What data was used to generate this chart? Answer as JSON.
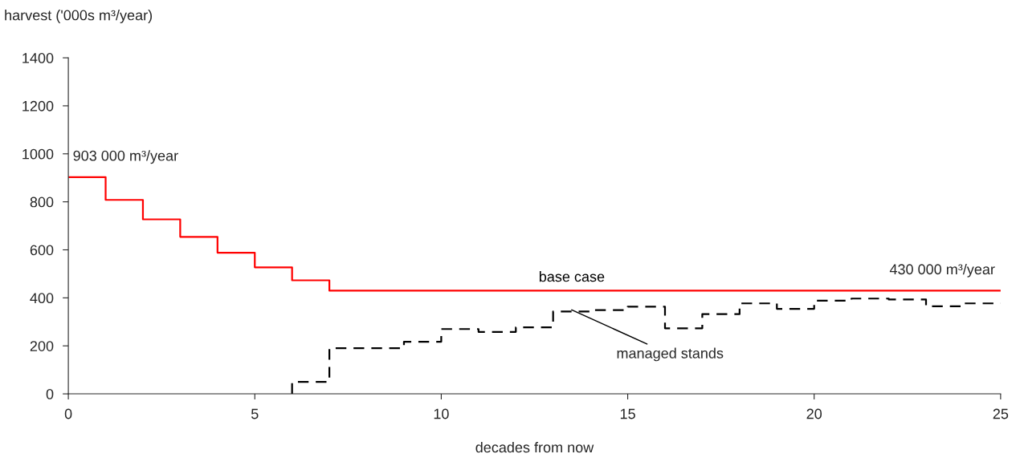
{
  "chart_data": {
    "type": "step",
    "ylabel": "harvest ('000s m³/year)",
    "xlabel": "decades from now",
    "xlim": [
      0,
      25
    ],
    "xticks": [
      0,
      5,
      10,
      15,
      20,
      25
    ],
    "ylim": [
      0,
      1400
    ],
    "yticks": [
      0,
      200,
      400,
      600,
      800,
      1000,
      1200,
      1400
    ],
    "grid": false,
    "legend": false,
    "series": [
      {
        "name": "base case",
        "color": "#ff0000",
        "line_style": "solid",
        "x": [
          0,
          1,
          2,
          3,
          4,
          5,
          6,
          7,
          25
        ],
        "values": [
          903,
          808,
          727,
          654,
          588,
          527,
          473,
          430,
          430
        ]
      },
      {
        "color": "#000000",
        "line_style": "dashed",
        "x": [
          6,
          6,
          7,
          9,
          10,
          11,
          12,
          13,
          14,
          15,
          16,
          17,
          18,
          19,
          20,
          21,
          22,
          23,
          24,
          25
        ],
        "values": [
          0,
          50,
          190,
          217,
          270,
          258,
          277,
          343,
          349,
          363,
          273,
          332,
          377,
          354,
          388,
          397,
          393,
          365,
          377,
          377
        ]
      }
    ],
    "annotations": [
      {
        "text": "903 000 m³/year",
        "x": 0,
        "y": 903
      },
      {
        "text": "430 000 m³/year",
        "x": 25,
        "y": 430
      },
      {
        "text": "managed stands",
        "x": 13.5,
        "y": 350
      }
    ]
  }
}
